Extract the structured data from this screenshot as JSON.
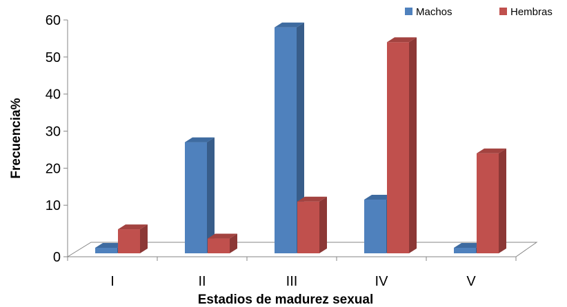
{
  "chart_data": {
    "type": "bar",
    "categories": [
      "I",
      "II",
      "III",
      "IV",
      "V"
    ],
    "series": [
      {
        "name": "Machos",
        "values": [
          0,
          28.5,
          59.5,
          13,
          0
        ],
        "color": "#4F81BD",
        "color_side": "#385D8A",
        "color_top": "#3E6BA0"
      },
      {
        "name": "Hembras",
        "values": [
          5,
          2.5,
          12.5,
          55.5,
          25.5
        ],
        "color": "#C0504D",
        "color_side": "#8C3836",
        "color_top": "#A34340"
      }
    ],
    "xlabel": "Estadios de madurez sexual",
    "ylabel": "Frecuencia%",
    "ylim": [
      0,
      60
    ],
    "yticks": [
      "0",
      "10",
      "20",
      "30",
      "40",
      "50",
      "60"
    ],
    "legend_position": "top-right",
    "grid": false,
    "view": "3d-clustered-column"
  }
}
